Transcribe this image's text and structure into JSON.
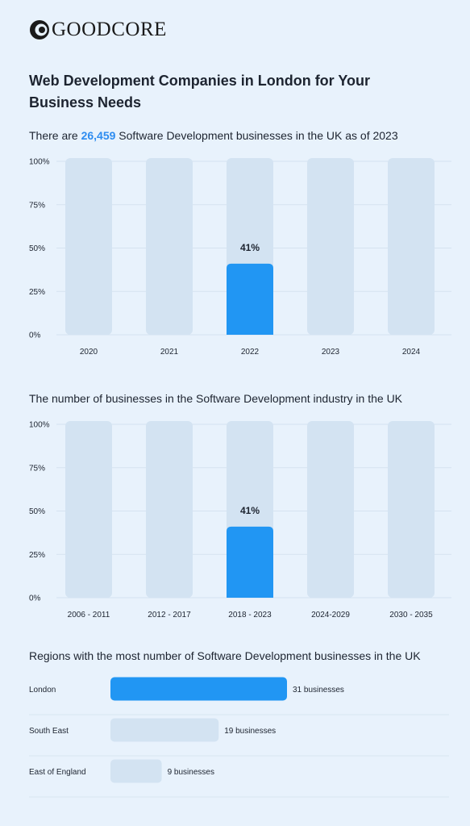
{
  "brand": {
    "logo_text": "GOODCORE"
  },
  "title": "Web Development Companies in London for Your Business Needs",
  "colors": {
    "highlight": "#2196f3",
    "bar_bg": "#d3e3f2",
    "page_bg": "#e8f2fc"
  },
  "section1": {
    "prefix": "There are ",
    "highlight": "26,459",
    "suffix": " Software Development businesses in the UK as of 2023"
  },
  "section2": {
    "title": "The number of businesses in the Software Development industry in the UK"
  },
  "section3": {
    "title": "Regions with the most number of Software Development businesses in the UK"
  },
  "chart_data": [
    {
      "type": "bar",
      "categories": [
        "2020",
        "2021",
        "2022",
        "2023",
        "2024"
      ],
      "values": [
        null,
        null,
        41,
        null,
        null
      ],
      "value_labels": [
        "",
        "",
        "41%",
        "",
        ""
      ],
      "y_ticks": [
        "0%",
        "25%",
        "50%",
        "75%",
        "100%"
      ],
      "ylim": [
        0,
        100
      ],
      "title": "",
      "xlabel": "",
      "ylabel": ""
    },
    {
      "type": "bar",
      "categories": [
        "2006 - 2011",
        "2012 - 2017",
        "2018 - 2023",
        "2024-2029",
        "2030 - 2035"
      ],
      "values": [
        null,
        null,
        41,
        null,
        null
      ],
      "value_labels": [
        "",
        "",
        "41%",
        "",
        ""
      ],
      "y_ticks": [
        "0%",
        "25%",
        "50%",
        "75%",
        "100%"
      ],
      "ylim": [
        0,
        100
      ],
      "title": "",
      "xlabel": "",
      "ylabel": ""
    },
    {
      "type": "bar",
      "orientation": "horizontal",
      "categories": [
        "London",
        "South East",
        "East of England"
      ],
      "values": [
        31,
        19,
        9
      ],
      "value_labels": [
        "31 businesses",
        "19 businesses",
        "9 businesses"
      ],
      "highlight_index": 0,
      "title": "",
      "xlabel": "",
      "ylabel": ""
    }
  ]
}
